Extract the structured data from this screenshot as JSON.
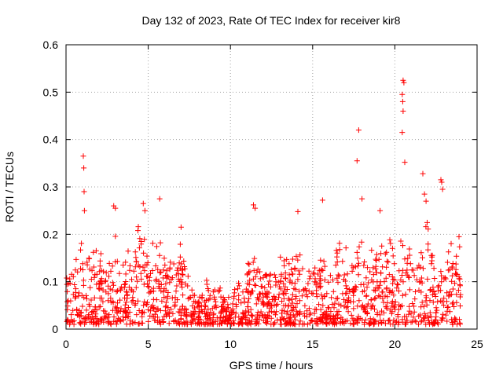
{
  "chart_data": {
    "type": "scatter",
    "title": "Day 132 of 2023, Rate Of TEC Index for receiver kir8",
    "xlabel": "GPS time / hours",
    "ylabel": "ROTI / TECUs",
    "xlim": [
      0,
      25
    ],
    "ylim": [
      0,
      0.6
    ],
    "xticks": [
      0,
      5,
      10,
      15,
      20,
      25
    ],
    "yticks": [
      0,
      0.1,
      0.2,
      0.3,
      0.4,
      0.5,
      0.6
    ],
    "xtick_labels": [
      "0",
      "5",
      "10",
      "15",
      "20",
      "25"
    ],
    "ytick_labels": [
      "0",
      "0.1",
      "0.2",
      "0.3",
      "0.4",
      "0.5",
      "0.6"
    ],
    "grid": true,
    "marker": "+",
    "series": [
      {
        "name": "ROTI",
        "color": "#ff0000",
        "x_start": 0,
        "x_end": 24,
        "envelope": [
          [
            0.0,
            0.14
          ],
          [
            0.5,
            0.17
          ],
          [
            1.0,
            0.22
          ],
          [
            1.5,
            0.17
          ],
          [
            2.0,
            0.18
          ],
          [
            2.5,
            0.16
          ],
          [
            3.0,
            0.21
          ],
          [
            3.5,
            0.2
          ],
          [
            4.0,
            0.19
          ],
          [
            4.5,
            0.24
          ],
          [
            5.0,
            0.2
          ],
          [
            5.5,
            0.19
          ],
          [
            6.0,
            0.2
          ],
          [
            6.5,
            0.17
          ],
          [
            7.0,
            0.19
          ],
          [
            7.5,
            0.12
          ],
          [
            8.0,
            0.08
          ],
          [
            8.5,
            0.11
          ],
          [
            9.0,
            0.12
          ],
          [
            9.5,
            0.08
          ],
          [
            10.0,
            0.09
          ],
          [
            10.5,
            0.11
          ],
          [
            11.0,
            0.16
          ],
          [
            11.5,
            0.19
          ],
          [
            12.0,
            0.15
          ],
          [
            12.5,
            0.14
          ],
          [
            13.0,
            0.17
          ],
          [
            13.5,
            0.16
          ],
          [
            14.0,
            0.19
          ],
          [
            14.5,
            0.17
          ],
          [
            15.0,
            0.14
          ],
          [
            15.5,
            0.19
          ],
          [
            16.0,
            0.18
          ],
          [
            16.5,
            0.21
          ],
          [
            17.0,
            0.2
          ],
          [
            17.5,
            0.19
          ],
          [
            18.0,
            0.21
          ],
          [
            18.5,
            0.2
          ],
          [
            19.0,
            0.2
          ],
          [
            19.5,
            0.21
          ],
          [
            20.0,
            0.2
          ],
          [
            20.5,
            0.21
          ],
          [
            21.0,
            0.18
          ],
          [
            21.5,
            0.23
          ],
          [
            22.0,
            0.24
          ],
          [
            22.5,
            0.18
          ],
          [
            23.0,
            0.18
          ],
          [
            23.5,
            0.19
          ],
          [
            24.0,
            0.18
          ]
        ],
        "outliers": [
          {
            "x": 1.05,
            "y": 0.365
          },
          {
            "x": 1.08,
            "y": 0.34
          },
          {
            "x": 1.1,
            "y": 0.29
          },
          {
            "x": 1.12,
            "y": 0.25
          },
          {
            "x": 2.9,
            "y": 0.26
          },
          {
            "x": 3.0,
            "y": 0.255
          },
          {
            "x": 4.7,
            "y": 0.265
          },
          {
            "x": 4.8,
            "y": 0.25
          },
          {
            "x": 5.7,
            "y": 0.275
          },
          {
            "x": 7.0,
            "y": 0.215
          },
          {
            "x": 11.4,
            "y": 0.262
          },
          {
            "x": 11.5,
            "y": 0.255
          },
          {
            "x": 14.1,
            "y": 0.248
          },
          {
            "x": 15.6,
            "y": 0.272
          },
          {
            "x": 17.8,
            "y": 0.42
          },
          {
            "x": 17.7,
            "y": 0.355
          },
          {
            "x": 18.0,
            "y": 0.275
          },
          {
            "x": 19.1,
            "y": 0.25
          },
          {
            "x": 20.5,
            "y": 0.525
          },
          {
            "x": 20.55,
            "y": 0.52
          },
          {
            "x": 20.45,
            "y": 0.495
          },
          {
            "x": 20.48,
            "y": 0.48
          },
          {
            "x": 20.5,
            "y": 0.46
          },
          {
            "x": 20.45,
            "y": 0.415
          },
          {
            "x": 20.6,
            "y": 0.352
          },
          {
            "x": 21.7,
            "y": 0.328
          },
          {
            "x": 21.8,
            "y": 0.285
          },
          {
            "x": 21.9,
            "y": 0.27
          },
          {
            "x": 22.8,
            "y": 0.315
          },
          {
            "x": 22.85,
            "y": 0.31
          },
          {
            "x": 22.9,
            "y": 0.295
          },
          {
            "x": 23.9,
            "y": 0.195
          }
        ],
        "sample_count": 1500,
        "seed": 132
      }
    ]
  }
}
